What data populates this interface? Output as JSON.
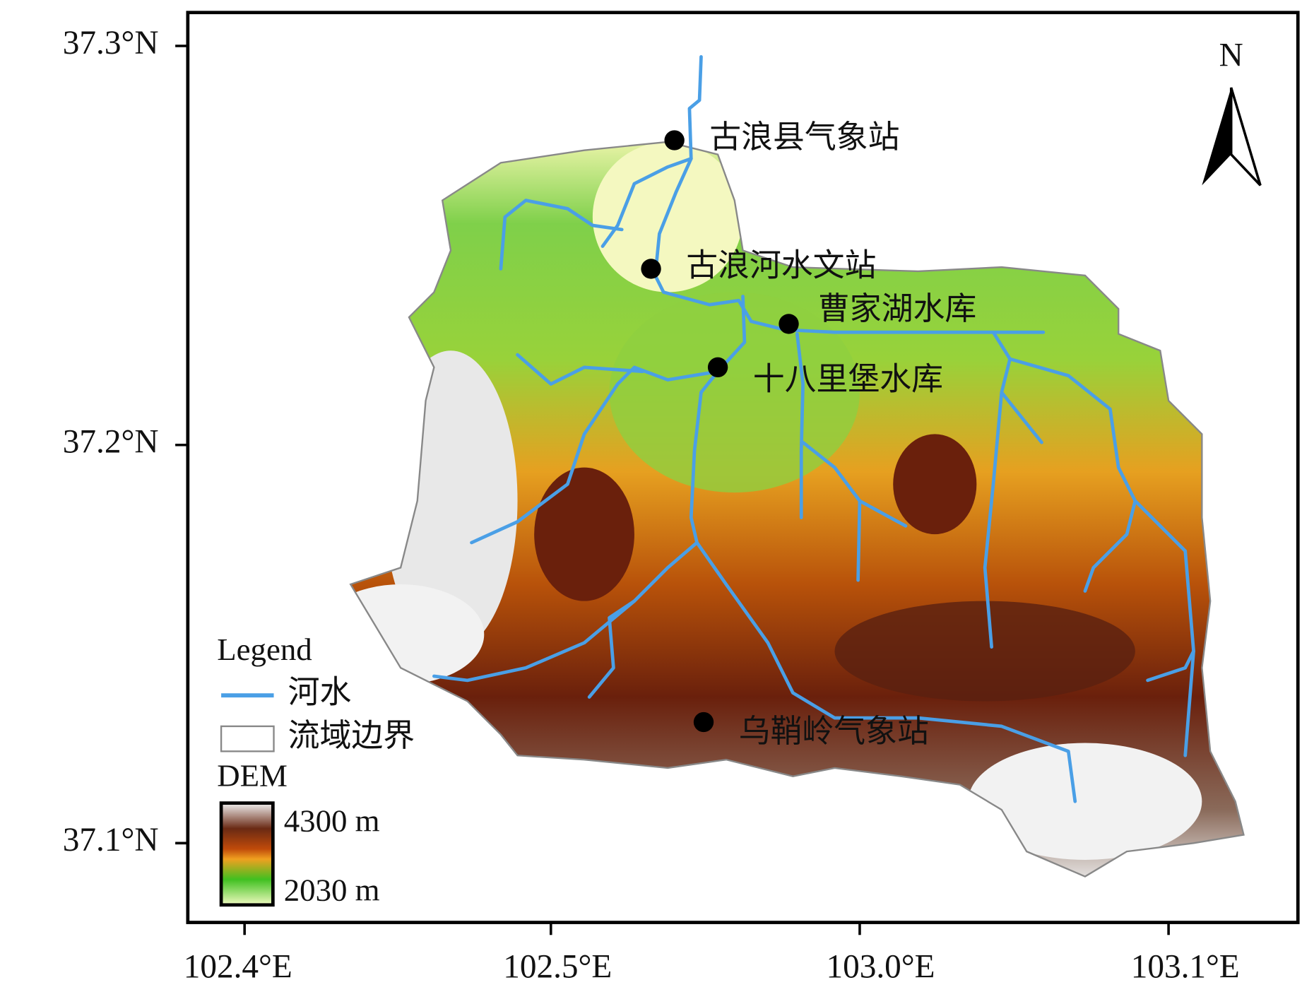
{
  "axes": {
    "y_labels": [
      "37.3°N",
      "37.2°N",
      "37.1°N"
    ],
    "x_labels": [
      "102.4°E",
      "102.5°E",
      "103.0°E",
      "103.1°E"
    ]
  },
  "north_arrow": "N",
  "stations": [
    "古浪县气象站",
    "古浪河水文站",
    "曹家湖水库",
    "十八里堡水库",
    "乌鞘岭气象站"
  ],
  "legend": {
    "title": "Legend",
    "items": [
      "河水",
      "流域边界"
    ],
    "dem_title": "DEM",
    "dem_max": "4300 m",
    "dem_min": "2030 m"
  }
}
